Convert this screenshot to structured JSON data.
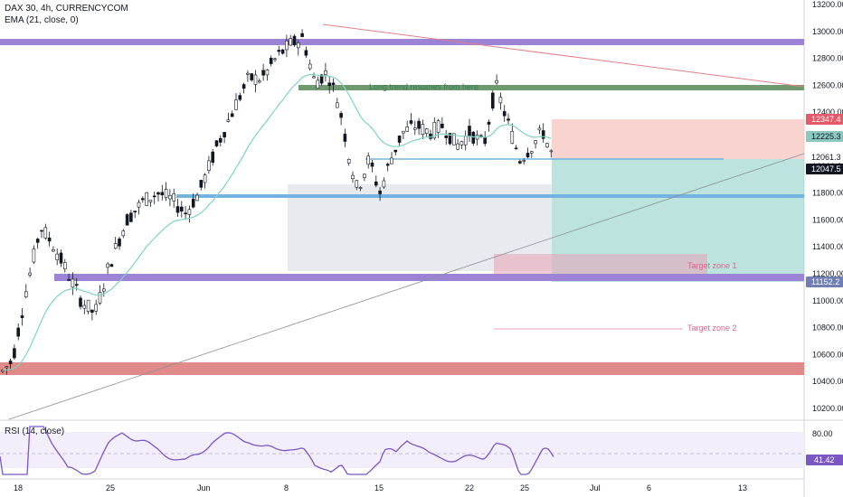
{
  "header": {
    "symbol_line": "DAX 30, 4h, CURRENCYCOM",
    "indicator_line": "EMA (21, close, 0)",
    "rsi_line": "RSI (14, close)"
  },
  "colors": {
    "up": "#ffffff",
    "down": "#131722",
    "ema": "#7fd3c3",
    "purple_zone": "#9c83d6",
    "green_line": "#6f9a6f",
    "blue_line": "#74b3e0",
    "red_zone": "#e08a8a",
    "rsi": "#7b57c4"
  },
  "annotations": {
    "long_trend": "Long trend resumes from here",
    "target1": "Target zone 1",
    "target2": "Target zone 2"
  },
  "price_labels": {
    "stop": "12347.4",
    "mid": "12225.3",
    "entry": "12061.3",
    "last": "12047.5",
    "target": "11152.2",
    "rsi_value": "41.42"
  },
  "chart_data": {
    "type": "candlestick",
    "title": "DAX 30, 4h, CURRENCYCOM",
    "y_axis_ticks": [
      13200,
      13000,
      12800,
      12600,
      12400,
      12200,
      12000,
      11800,
      11600,
      11400,
      11200,
      11000,
      10800,
      10600,
      10400,
      10200
    ],
    "x_axis_ticks": [
      "18",
      "25",
      "Jun",
      "8",
      "15",
      "22",
      "25",
      "Jul",
      "6",
      "13"
    ],
    "ylim": [
      10150,
      13250
    ],
    "rsi_ticks": [
      "80.00"
    ],
    "rsi_value": 41.42,
    "levels": {
      "resistance_top": 12935,
      "long_trend_line": 12590,
      "entry": 12061.3,
      "breakout_line": 11780,
      "support_zone": 11190,
      "low_zone": 10490,
      "stop": 12347.4,
      "target": 11152.2
    }
  }
}
